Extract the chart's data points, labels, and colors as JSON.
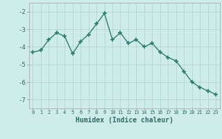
{
  "x": [
    0,
    1,
    2,
    3,
    4,
    5,
    6,
    7,
    8,
    9,
    10,
    11,
    12,
    13,
    14,
    15,
    16,
    17,
    18,
    19,
    20,
    21,
    22,
    23
  ],
  "y": [
    -4.3,
    -4.2,
    -3.6,
    -3.2,
    -3.4,
    -4.4,
    -3.7,
    -3.3,
    -2.7,
    -2.1,
    -3.6,
    -3.2,
    -3.8,
    -3.6,
    -4.0,
    -3.8,
    -4.3,
    -4.6,
    -4.8,
    -5.4,
    -6.0,
    -6.3,
    -6.5,
    -6.7
  ],
  "xlabel": "Humidex (Indice chaleur)",
  "ylim": [
    -7.5,
    -1.5
  ],
  "yticks": [
    -7,
    -6,
    -5,
    -4,
    -3,
    -2
  ],
  "xlim": [
    -0.5,
    23.5
  ],
  "line_color": "#2e7d6e",
  "bg_color": "#ceecea",
  "grid_color": "#b8d8d4"
}
